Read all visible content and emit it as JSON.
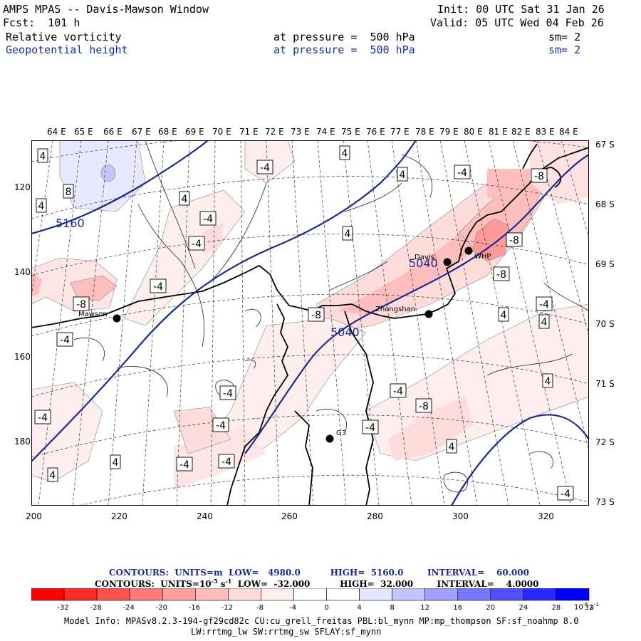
{
  "header": {
    "title": "AMPS MPAS -- Davis-Mawson Window",
    "init": "Init: 00 UTC Sat 31 Jan 26",
    "forecast": "Fcst:  101 h",
    "valid": "Valid: 05 UTC Wed 04 Feb 26",
    "field1": "Relative vorticity",
    "field1_level": "at pressure =  500 hPa",
    "field1_sm": "sm= 2",
    "field2": "Geopotential height",
    "field2_level": "at pressure =  500 hPa",
    "field2_sm": "sm= 2"
  },
  "axes": {
    "lon_labels": [
      "64 E",
      "65 E",
      "66 E",
      "67 E",
      "68 E",
      "69 E",
      "70 E",
      "71 E",
      "72 E",
      "73 E",
      "74 E",
      "75 E",
      "76 E",
      "77 E",
      "78 E",
      "79 E",
      "80 E",
      "81 E",
      "82 E",
      "83 E",
      "84 E"
    ],
    "lat_labels": [
      "67 S",
      "68 S",
      "69 S",
      "70 S",
      "71 S",
      "72 S",
      "73 S"
    ],
    "y_ticks": [
      "120",
      "140",
      "160",
      "180"
    ],
    "x_ticks": [
      "200",
      "220",
      "240",
      "260",
      "280",
      "300",
      "320"
    ]
  },
  "map": {
    "stations": [
      "Mawson",
      "Davis",
      "Zhongshan",
      "WHP",
      "G3"
    ],
    "height_labels": [
      "5160",
      "5040",
      "5040"
    ],
    "vort_labels": [
      "-4",
      "-8",
      "4",
      "8"
    ]
  },
  "info": {
    "contours_height": "CONTOURS:  UNITS=m  LOW=   4980.0          HIGH=  5160.0        INTERVAL=    60.000",
    "contours_vort": "CONTOURS:  UNITS=10",
    "contours_vort_exp": "-5",
    "contours_vort_rest": " s",
    "contours_vort_exp2": "-1",
    "contours_vort_tail": "  LOW=  -32.000          HIGH=  32.000        INTERVAL=    4.0000"
  },
  "colorbar": {
    "labels": [
      "-32",
      "-28",
      "-24",
      "-20",
      "-16",
      "-12",
      "-8",
      "-4",
      "0",
      "4",
      "8",
      "12",
      "16",
      "20",
      "24",
      "28",
      "32"
    ],
    "unit": "10",
    "unit_exp": "-5",
    "unit_tail": " s",
    "unit_exp2": "-1",
    "colors": [
      "#ff0000",
      "#ff2a2a",
      "#ff5252",
      "#ff7a7a",
      "#ffa0a0",
      "#ffbebe",
      "#ffdcdc",
      "#ffeeee",
      "#ffffff",
      "#ffffff",
      "#e6e6ff",
      "#c4c4ff",
      "#a0a0ff",
      "#7878ff",
      "#5050ff",
      "#2828ff",
      "#0000ff"
    ]
  },
  "footer": {
    "line1": "Model Info: MPASv8.2.3-194-gf29cd82c CU:cu_grell_freitas PBL:bl_mynn MP:mp_thompson SF:sf_noahmp 8.0",
    "line2": "LW:rrtmg_lw SW:rrtmg_sw SFLAY:sf_mynn"
  }
}
